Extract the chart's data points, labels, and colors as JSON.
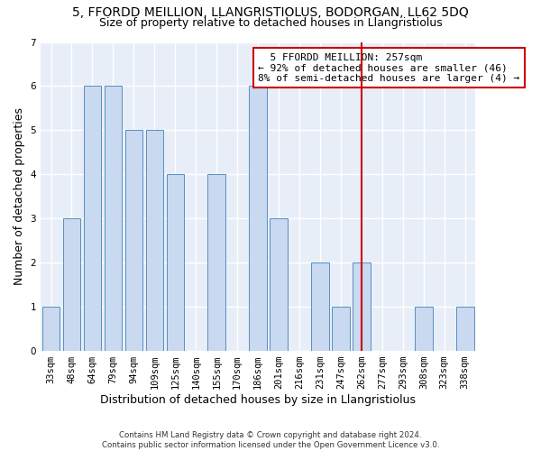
{
  "title1": "5, FFORDD MEILLION, LLANGRISTIOLUS, BODORGAN, LL62 5DQ",
  "title2": "Size of property relative to detached houses in Llangristiolus",
  "xlabel": "Distribution of detached houses by size in Llangristiolus",
  "ylabel": "Number of detached properties",
  "categories": [
    "33sqm",
    "48sqm",
    "64sqm",
    "79sqm",
    "94sqm",
    "109sqm",
    "125sqm",
    "140sqm",
    "155sqm",
    "170sqm",
    "186sqm",
    "201sqm",
    "216sqm",
    "231sqm",
    "247sqm",
    "262sqm",
    "277sqm",
    "293sqm",
    "308sqm",
    "323sqm",
    "338sqm"
  ],
  "values": [
    1,
    3,
    6,
    6,
    5,
    5,
    4,
    0,
    4,
    0,
    6,
    3,
    0,
    2,
    1,
    2,
    0,
    0,
    1,
    0,
    1
  ],
  "bar_color": "#c8d9f0",
  "bar_edge_color": "#5a8fc0",
  "background_color": "#e8eef8",
  "grid_color": "#ffffff",
  "annotation_text": "  5 FFORDD MEILLION: 257sqm  \n← 92% of detached houses are smaller (46)\n8% of semi-detached houses are larger (4) →",
  "vline_x_index": 15,
  "vline_color": "#cc0000",
  "box_color": "#cc0000",
  "ylim": [
    0,
    7
  ],
  "yticks": [
    0,
    1,
    2,
    3,
    4,
    5,
    6,
    7
  ],
  "footnote": "Contains HM Land Registry data © Crown copyright and database right 2024.\nContains public sector information licensed under the Open Government Licence v3.0.",
  "title1_fontsize": 10,
  "title2_fontsize": 9,
  "xlabel_fontsize": 9,
  "ylabel_fontsize": 9,
  "tick_fontsize": 7.5,
  "annotation_fontsize": 8
}
